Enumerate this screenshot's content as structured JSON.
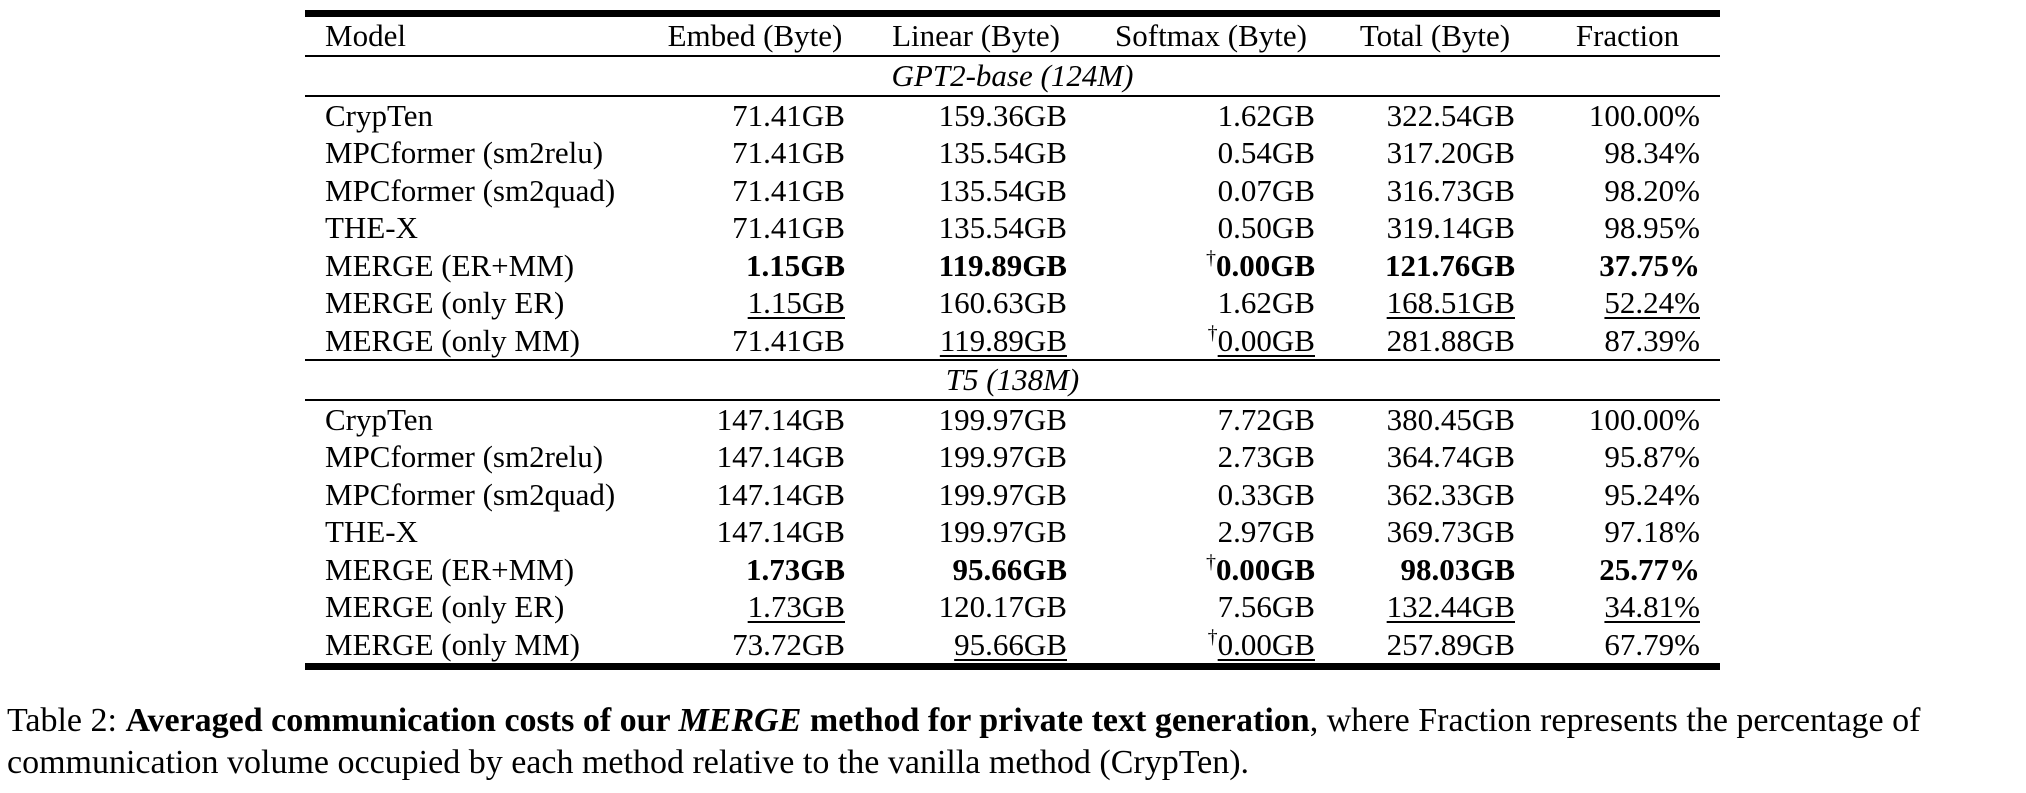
{
  "table": {
    "headers": [
      "Model",
      "Embed (Byte)",
      "Linear (Byte)",
      "Softmax (Byte)",
      "Total (Byte)",
      "Fraction"
    ],
    "sections": [
      {
        "label": "GPT2-base (124M)",
        "rows": [
          {
            "model": "CrypTen",
            "embed": "71.41GB",
            "linear": "159.36GB",
            "softmax": "1.62GB",
            "total": "322.54GB",
            "fraction": "100.00%"
          },
          {
            "model": "MPCformer (sm2relu)",
            "embed": "71.41GB",
            "linear": "135.54GB",
            "softmax": "0.54GB",
            "total": "317.20GB",
            "fraction": "98.34%"
          },
          {
            "model": "MPCformer (sm2quad)",
            "embed": "71.41GB",
            "linear": "135.54GB",
            "softmax": "0.07GB",
            "total": "316.73GB",
            "fraction": "98.20%"
          },
          {
            "model": "THE-X",
            "embed": "71.41GB",
            "linear": "135.54GB",
            "softmax": "0.50GB",
            "total": "319.14GB",
            "fraction": "98.95%"
          },
          {
            "model": "MERGE (ER+MM)",
            "embed": "1.15GB",
            "linear": "119.89GB",
            "softmax": "0.00GB",
            "total": "121.76GB",
            "fraction": "37.75%"
          },
          {
            "model": "MERGE (only ER)",
            "embed": "1.15GB",
            "linear": "160.63GB",
            "softmax": "1.62GB",
            "total": "168.51GB",
            "fraction": "52.24%"
          },
          {
            "model": "MERGE (only MM)",
            "embed": "71.41GB",
            "linear": "119.89GB",
            "softmax": "0.00GB",
            "total": "281.88GB",
            "fraction": "87.39%"
          }
        ]
      },
      {
        "label": "T5 (138M)",
        "rows": [
          {
            "model": "CrypTen",
            "embed": "147.14GB",
            "linear": "199.97GB",
            "softmax": "7.72GB",
            "total": "380.45GB",
            "fraction": "100.00%"
          },
          {
            "model": "MPCformer (sm2relu)",
            "embed": "147.14GB",
            "linear": "199.97GB",
            "softmax": "2.73GB",
            "total": "364.74GB",
            "fraction": "95.87%"
          },
          {
            "model": "MPCformer (sm2quad)",
            "embed": "147.14GB",
            "linear": "199.97GB",
            "softmax": "0.33GB",
            "total": "362.33GB",
            "fraction": "95.24%"
          },
          {
            "model": "THE-X",
            "embed": "147.14GB",
            "linear": "199.97GB",
            "softmax": "2.97GB",
            "total": "369.73GB",
            "fraction": "97.18%"
          },
          {
            "model": "MERGE (ER+MM)",
            "embed": "1.73GB",
            "linear": "95.66GB",
            "softmax": "0.00GB",
            "total": "98.03GB",
            "fraction": "25.77%"
          },
          {
            "model": "MERGE (only ER)",
            "embed": "1.73GB",
            "linear": "120.17GB",
            "softmax": "7.56GB",
            "total": "132.44GB",
            "fraction": "34.81%"
          },
          {
            "model": "MERGE (only MM)",
            "embed": "73.72GB",
            "linear": "95.66GB",
            "softmax": "0.00GB",
            "total": "257.89GB",
            "fraction": "67.79%"
          }
        ]
      }
    ],
    "dagger": "†"
  },
  "caption": {
    "label": "Table 2: ",
    "bold_a": "Averaged communication costs of our ",
    "bold_italic": "MERGE",
    "bold_b": " method for private text generation",
    "rest": ", where Fraction represents the percentage of communication volume occupied by each method relative to the vanilla method (CrypTen)."
  }
}
